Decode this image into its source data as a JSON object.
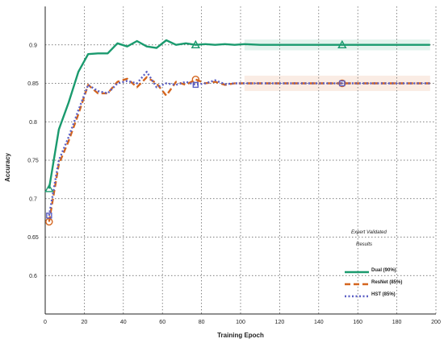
{
  "chart_data": {
    "type": "line",
    "title": "",
    "xlabel": "Training Epoch",
    "ylabel": "Accuracy",
    "xlim": [
      0,
      200
    ],
    "ylim": [
      0.55,
      0.95
    ],
    "x_ticks": [
      0,
      20,
      40,
      60,
      80,
      100,
      120,
      140,
      160,
      180,
      200
    ],
    "y_ticks": [
      0.6,
      0.65,
      0.7,
      0.75,
      0.8,
      0.85,
      0.9
    ],
    "y_tick_labels": [
      "0.6",
      "0.65",
      "0.7",
      "0.75",
      "0.8",
      "0.85",
      "0.9"
    ],
    "grid": true,
    "legend": {
      "position": "lower-right",
      "title_lines": [
        "Expert Validated",
        "Results"
      ]
    },
    "series": [
      {
        "name": "Dual (90%)",
        "color": "#1a9a6e",
        "style": "solid",
        "marker": "triangle",
        "x": [
          2,
          7,
          12,
          17,
          22,
          27,
          32,
          37,
          42,
          47,
          52,
          57,
          62,
          67,
          72,
          77,
          82,
          87,
          92,
          97,
          102,
          110,
          120,
          140,
          160,
          180,
          197
        ],
        "y": [
          0.713,
          0.79,
          0.825,
          0.865,
          0.888,
          0.889,
          0.889,
          0.902,
          0.898,
          0.905,
          0.898,
          0.896,
          0.906,
          0.9,
          0.902,
          0.9,
          0.901,
          0.9,
          0.901,
          0.9,
          0.901,
          0.9,
          0.9,
          0.9,
          0.9,
          0.9,
          0.9
        ],
        "band": {
          "x_start": 102,
          "x_end": 197,
          "low": 0.893,
          "high": 0.907
        }
      },
      {
        "name": "ResNet (85%)",
        "color": "#d4651e",
        "style": "dashed",
        "marker": "circle",
        "x": [
          2,
          7,
          12,
          17,
          22,
          27,
          32,
          37,
          42,
          47,
          52,
          57,
          62,
          67,
          72,
          77,
          82,
          87,
          92,
          97,
          102,
          120,
          140,
          160,
          180,
          197
        ],
        "y": [
          0.67,
          0.745,
          0.775,
          0.81,
          0.848,
          0.837,
          0.837,
          0.852,
          0.856,
          0.845,
          0.858,
          0.85,
          0.834,
          0.852,
          0.848,
          0.855,
          0.85,
          0.852,
          0.848,
          0.85,
          0.85,
          0.85,
          0.85,
          0.85,
          0.85,
          0.85
        ],
        "band": {
          "x_start": 102,
          "x_end": 197,
          "low": 0.84,
          "high": 0.86
        }
      },
      {
        "name": "HST (85%)",
        "color": "#5b5fc4",
        "style": "dotted",
        "marker": "square",
        "x": [
          2,
          7,
          12,
          17,
          22,
          27,
          32,
          37,
          42,
          47,
          52,
          57,
          62,
          67,
          72,
          77,
          82,
          87,
          92,
          97,
          102,
          120,
          140,
          160,
          180,
          197
        ],
        "y": [
          0.678,
          0.75,
          0.78,
          0.815,
          0.848,
          0.84,
          0.837,
          0.85,
          0.853,
          0.85,
          0.865,
          0.845,
          0.85,
          0.848,
          0.852,
          0.848,
          0.85,
          0.854,
          0.849,
          0.85,
          0.85,
          0.85,
          0.85,
          0.85,
          0.85,
          0.85
        ]
      }
    ],
    "markers": [
      {
        "series": 0,
        "x": 2,
        "y": 0.713
      },
      {
        "series": 0,
        "x": 77,
        "y": 0.9
      },
      {
        "series": 0,
        "x": 152,
        "y": 0.9
      },
      {
        "series": 1,
        "x": 2,
        "y": 0.67
      },
      {
        "series": 1,
        "x": 77,
        "y": 0.855
      },
      {
        "series": 1,
        "x": 152,
        "y": 0.85
      },
      {
        "series": 2,
        "x": 2,
        "y": 0.678
      },
      {
        "series": 2,
        "x": 77,
        "y": 0.848
      },
      {
        "series": 2,
        "x": 152,
        "y": 0.85
      }
    ]
  }
}
